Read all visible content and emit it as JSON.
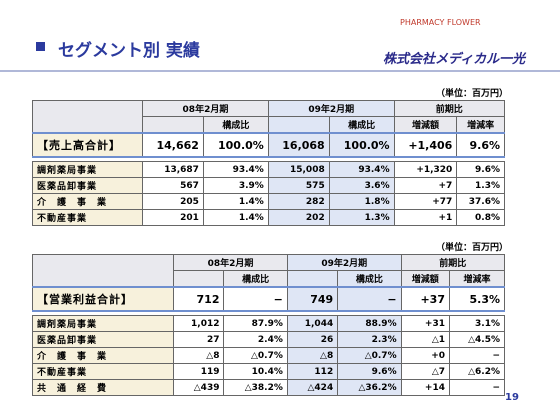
{
  "header": {
    "title": "セグメント別 実績",
    "logo": "PHARMACY FLOWER",
    "company": "株式会社メディカル一光"
  },
  "tables": [
    {
      "unit": "（単位：百万円）",
      "groups": [
        "08年2月期",
        "09年2月期",
        "前期比"
      ],
      "subheaders": [
        "構成比",
        "構成比",
        "増減額",
        "増減率"
      ],
      "rows": [
        [
          "【売上高合計】",
          "14,662",
          "100.0%",
          "16,068",
          "100.0%",
          "+1,406",
          "9.6%"
        ],
        [
          "調剤薬局事業",
          "13,687",
          "93.4%",
          "15,008",
          "93.4%",
          "+1,320",
          "9.6%"
        ],
        [
          "医薬品卸事業",
          "567",
          "3.9%",
          "575",
          "3.6%",
          "+7",
          "1.3%"
        ],
        [
          "介　護　事　業",
          "205",
          "1.4%",
          "282",
          "1.8%",
          "+77",
          "37.6%"
        ],
        [
          "不動産事業",
          "201",
          "1.4%",
          "202",
          "1.3%",
          "+1",
          "0.8%"
        ]
      ]
    },
    {
      "unit": "（単位：百万円）",
      "groups": [
        "08年2月期",
        "09年2月期",
        "前期比"
      ],
      "subheaders": [
        "構成比",
        "構成比",
        "増減額",
        "増減率"
      ],
      "rows": [
        [
          "【営業利益合計】",
          "712",
          "−",
          "749",
          "−",
          "+37",
          "5.3%"
        ],
        [
          "調剤薬局事業",
          "1,012",
          "87.9%",
          "1,044",
          "88.9%",
          "+31",
          "3.1%"
        ],
        [
          "医薬品卸事業",
          "27",
          "2.4%",
          "26",
          "2.3%",
          "△1",
          "△4.5%"
        ],
        [
          "介　護　事　業",
          "△8",
          "△0.7%",
          "△8",
          "△0.7%",
          "+0",
          "−"
        ],
        [
          "不動産事業",
          "119",
          "10.4%",
          "112",
          "9.6%",
          "△7",
          "△6.2%"
        ],
        [
          "共　通　経　費",
          "△439",
          "△38.2%",
          "△424",
          "△36.2%",
          "+14",
          "−"
        ]
      ]
    }
  ],
  "page_number": "19"
}
